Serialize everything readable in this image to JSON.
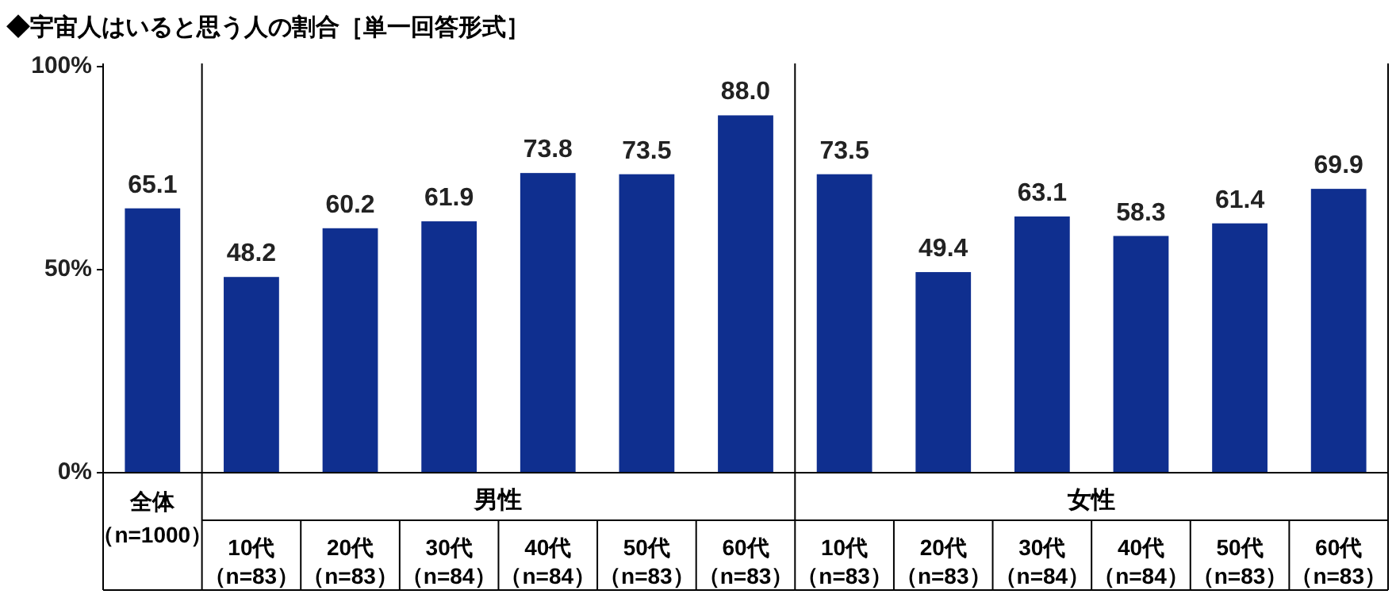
{
  "chart_data": {
    "type": "bar",
    "title": "◆宇宙人はいると思う人の割合［単一回答形式］",
    "categories": [
      "全体（n=1000）",
      "10代（n=83）",
      "20代（n=83）",
      "30代（n=84）",
      "40代（n=84）",
      "50代（n=83）",
      "60代（n=83）",
      "10代（n=83）",
      "20代（n=83）",
      "30代（n=84）",
      "40代（n=84）",
      "50代（n=83）",
      "60代（n=83）"
    ],
    "values": [
      65.1,
      48.2,
      60.2,
      61.9,
      73.8,
      73.5,
      88.0,
      73.5,
      49.4,
      63.1,
      58.3,
      61.4,
      69.9
    ],
    "color": "#0f2f8f",
    "value_labels": [
      "65.1",
      "48.2",
      "60.2",
      "61.9",
      "73.8",
      "73.5",
      "88.0",
      "73.5",
      "49.4",
      "63.1",
      "58.3",
      "61.4",
      "69.9"
    ],
    "ylim": [
      0,
      100
    ],
    "yticks": [
      {
        "value": 0,
        "label": "0%"
      },
      {
        "value": 50,
        "label": "50%"
      },
      {
        "value": 100,
        "label": "100%"
      }
    ],
    "annotations": [
      "男性",
      "女性"
    ]
  }
}
